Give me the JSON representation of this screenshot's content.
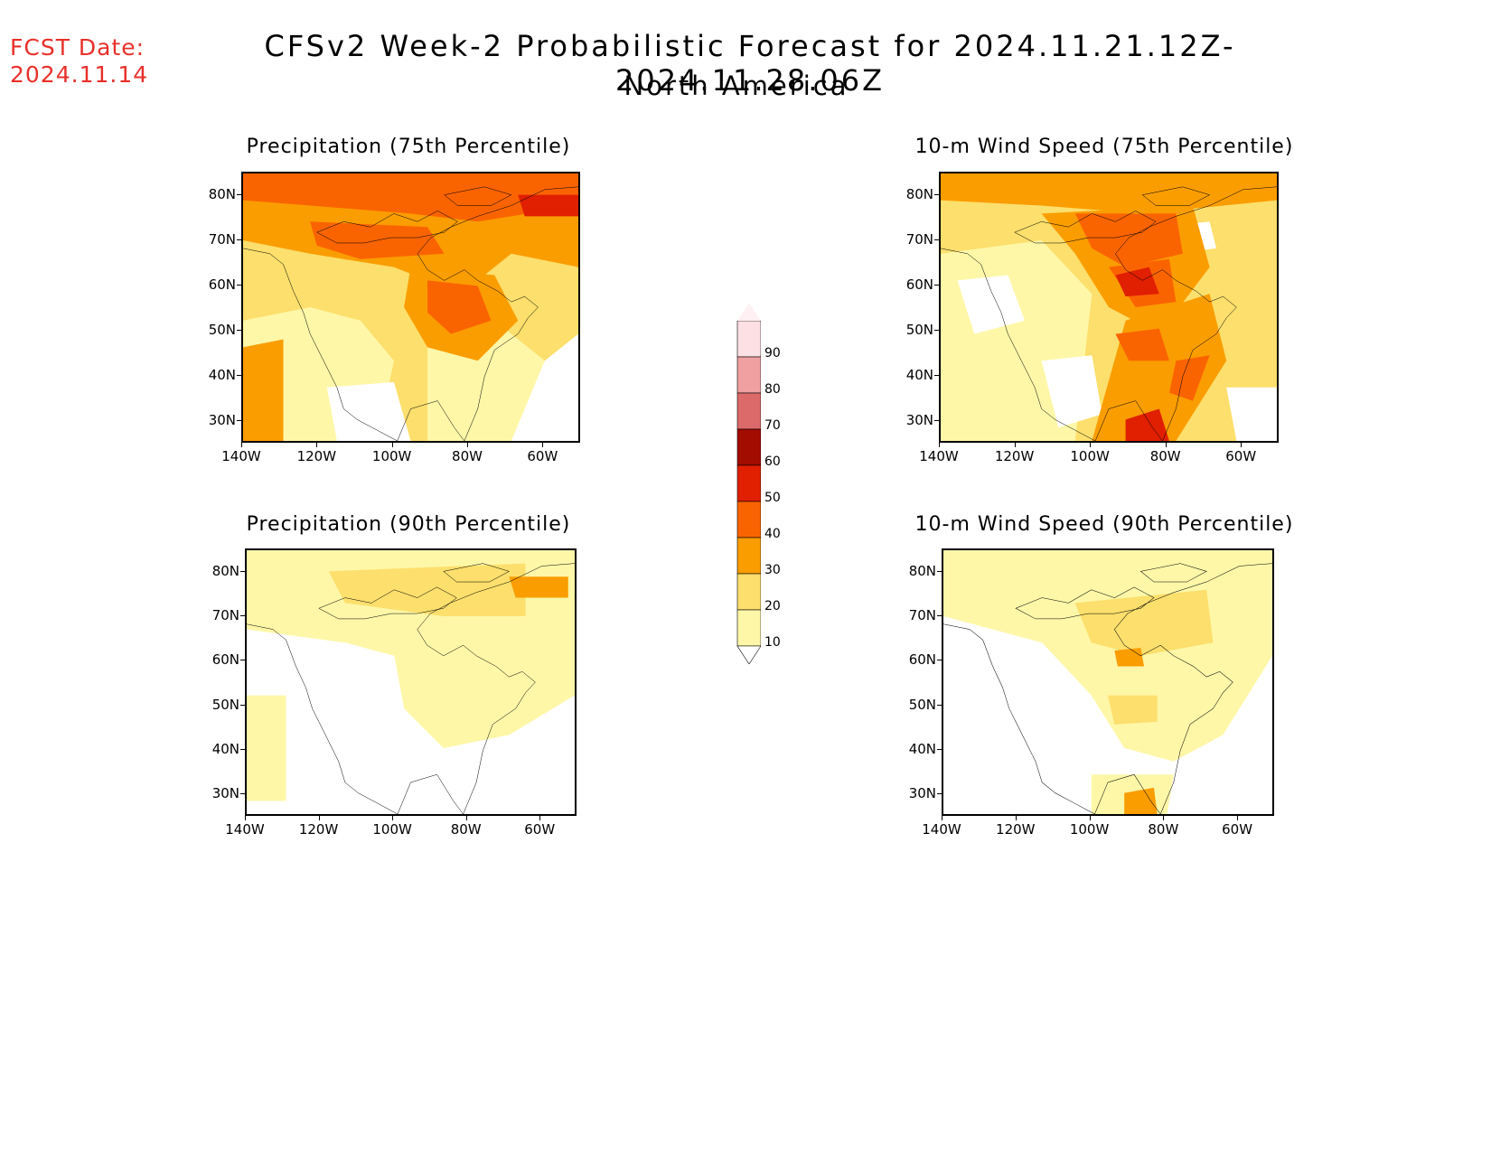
{
  "header": {
    "fcst_date_label": "FCST Date:",
    "fcst_date_value": "2024.11.14",
    "title": "CFSv2 Week-2 Probabilistic Forecast for 2024.11.21.12Z-2024.11.28.06Z",
    "subtitle": "North America"
  },
  "axes": {
    "lat_labels": [
      "80N",
      "70N",
      "60N",
      "50N",
      "40N",
      "30N"
    ],
    "lon_labels": [
      "140W",
      "120W",
      "100W",
      "80W",
      "60W"
    ]
  },
  "panels": [
    {
      "title": "Precipitation (75th Percentile)"
    },
    {
      "title": "10-m Wind Speed (75th Percentile)"
    },
    {
      "title": "Precipitation (90th Percentile)"
    },
    {
      "title": "10-m Wind Speed (90th Percentile)"
    }
  ],
  "colorbar": {
    "levels": [
      "90",
      "80",
      "70",
      "60",
      "50",
      "40",
      "30",
      "20",
      "10"
    ],
    "colors": [
      "#fde0e4",
      "#f0a0a0",
      "#dd6a6a",
      "#a30c00",
      "#e02000",
      "#fa6400",
      "#fa9d00",
      "#fcdf6c",
      "#fef7a8"
    ]
  },
  "colors": {
    "date_red": "#e8302a",
    "c10_20": "#fef7a8",
    "c20_30": "#fcdf6c",
    "c30_40": "#fa9d00",
    "c40_50": "#fa6400",
    "c50_60": "#e02000",
    "c60_70": "#a30c00"
  }
}
